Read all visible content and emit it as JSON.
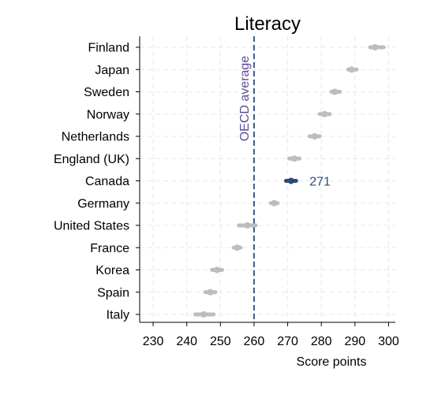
{
  "chart_data": {
    "type": "scatter",
    "title": "Literacy",
    "xlabel": "Score points",
    "ylabel": "",
    "xlim": [
      226,
      302
    ],
    "xticks": [
      230,
      240,
      250,
      260,
      270,
      280,
      290,
      300
    ],
    "grid": true,
    "categories": [
      "Finland",
      "Japan",
      "Sweden",
      "Norway",
      "Netherlands",
      "England (UK)",
      "Canada",
      "Germany",
      "United States",
      "France",
      "Korea",
      "Spain",
      "Italy"
    ],
    "values": [
      296,
      289,
      284,
      281,
      278,
      272,
      271,
      266,
      258,
      255,
      249,
      247,
      245
    ],
    "ci_low": [
      294.5,
      288,
      283,
      279.5,
      276.5,
      270.5,
      269.5,
      265,
      255.5,
      254,
      247.5,
      245.5,
      242.5
    ],
    "ci_high": [
      298.5,
      290.5,
      285.5,
      282.5,
      279.5,
      273.5,
      272.5,
      267,
      260.5,
      256,
      250.5,
      248.5,
      248
    ],
    "highlight": {
      "category": "Canada",
      "label": "271",
      "color": "#2b4a78"
    },
    "reference_line": {
      "value": 260,
      "label": "OECD average",
      "color": "#3a5a8c"
    },
    "colors": {
      "default": "#bdbdbd",
      "highlight": "#2b4a78",
      "reference_label": "#5b4a9c",
      "grid": "#e8e8e8"
    }
  }
}
